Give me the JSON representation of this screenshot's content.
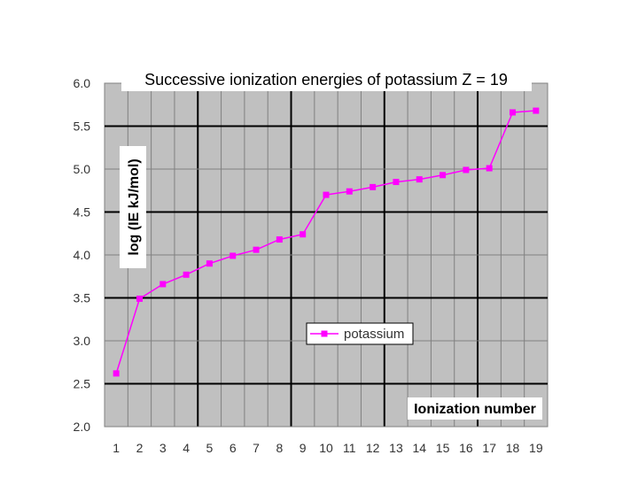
{
  "chart_data": {
    "type": "line",
    "title": "Successive ionization energies of potassium Z = 19",
    "xlabel": "Ionization number",
    "ylabel": "log (IE kJ/mol)",
    "x": [
      1,
      2,
      3,
      4,
      5,
      6,
      7,
      8,
      9,
      10,
      11,
      12,
      13,
      14,
      15,
      16,
      17,
      18,
      19
    ],
    "series": [
      {
        "name": "potassium",
        "color": "#ff00ff",
        "marker": "square",
        "values": [
          2.62,
          3.49,
          3.66,
          3.77,
          3.9,
          3.99,
          4.06,
          4.18,
          4.24,
          4.7,
          4.74,
          4.79,
          4.85,
          4.88,
          4.93,
          4.99,
          5.01,
          5.66,
          5.68
        ]
      }
    ],
    "ylim": [
      2.0,
      6.0
    ],
    "yticks": [
      "2.0",
      "2.5",
      "3.0",
      "3.5",
      "4.0",
      "4.5",
      "5.0",
      "5.5",
      "6.0"
    ],
    "xticks": [
      "1",
      "2",
      "3",
      "4",
      "5",
      "6",
      "7",
      "8",
      "9",
      "10",
      "11",
      "12",
      "13",
      "14",
      "15",
      "16",
      "17",
      "18",
      "19"
    ],
    "grid": true,
    "legend_position": "center",
    "plot_background": "#c0c0c0"
  }
}
